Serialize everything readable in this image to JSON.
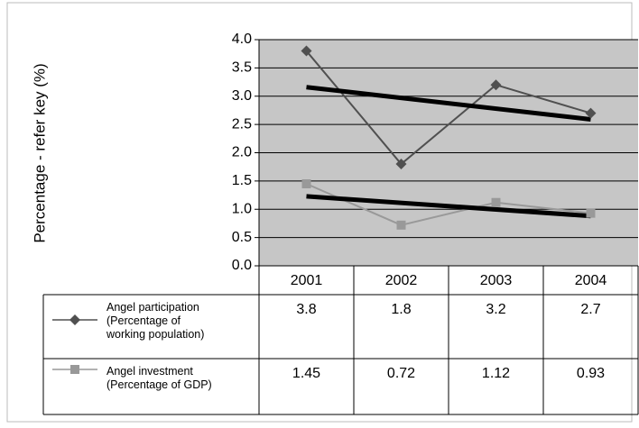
{
  "chart_data": {
    "type": "line",
    "y_label": "Percentage - refer key (%)",
    "categories": [
      "2001",
      "2002",
      "2003",
      "2004"
    ],
    "series": [
      {
        "name": "Angel participation\n(Percentage of\nworking population)",
        "color": "#505050",
        "marker": "diamond",
        "values": [
          3.8,
          1.8,
          3.2,
          2.7
        ]
      },
      {
        "name": "Angel investment\n(Percentage of GDP)",
        "color": "#999999",
        "marker": "square",
        "values": [
          1.45,
          0.72,
          1.12,
          0.93
        ]
      }
    ],
    "ylim": [
      0,
      4
    ],
    "yticks": [
      {
        "value": 0,
        "label": "0.0"
      },
      0.5,
      {
        "value": 1,
        "label": "1.0"
      },
      1.5,
      {
        "value": 2,
        "label": "2.0"
      },
      2.5,
      {
        "value": 3,
        "label": "3.0"
      },
      3.5,
      {
        "value": 4,
        "label": "4.0"
      }
    ],
    "grid": true,
    "trendline": true,
    "data_table": true,
    "plot_background": "#c6c6c6"
  }
}
